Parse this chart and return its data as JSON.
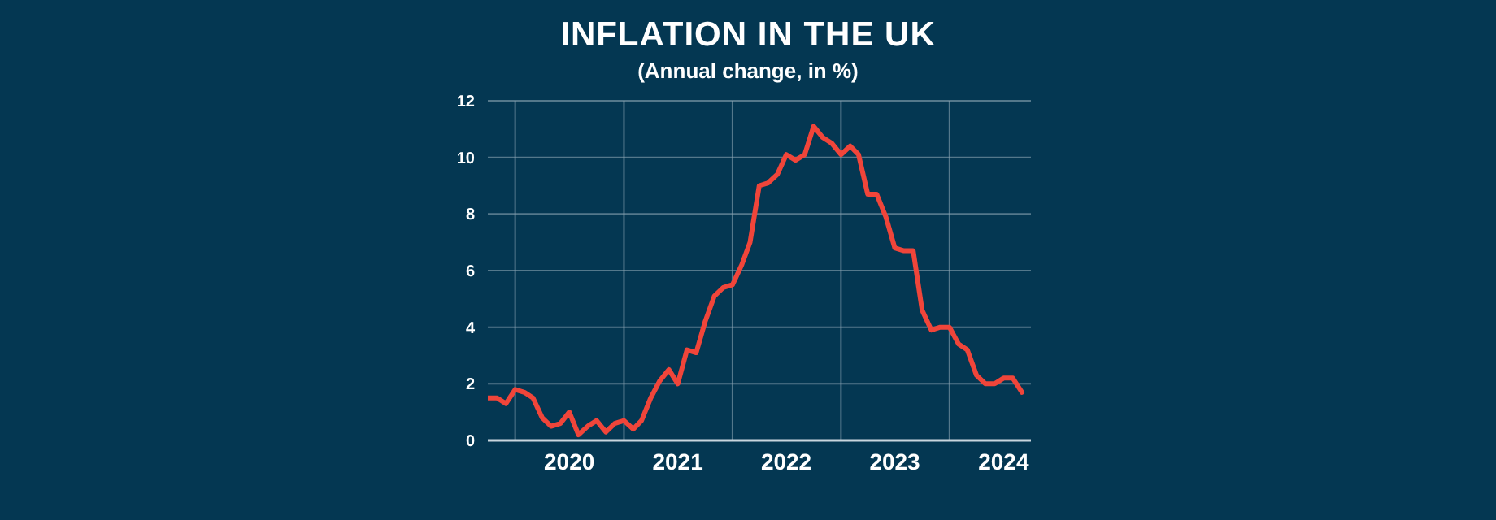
{
  "chart_data": {
    "type": "line",
    "title": "INFLATION IN THE UK",
    "subtitle": "(Annual change, in %)",
    "x": [
      "2019-10",
      "2019-11",
      "2019-12",
      "2020-01",
      "2020-02",
      "2020-03",
      "2020-04",
      "2020-05",
      "2020-06",
      "2020-07",
      "2020-08",
      "2020-09",
      "2020-10",
      "2020-11",
      "2020-12",
      "2021-01",
      "2021-02",
      "2021-03",
      "2021-04",
      "2021-05",
      "2021-06",
      "2021-07",
      "2021-08",
      "2021-09",
      "2021-10",
      "2021-11",
      "2021-12",
      "2022-01",
      "2022-02",
      "2022-03",
      "2022-04",
      "2022-05",
      "2022-06",
      "2022-07",
      "2022-08",
      "2022-09",
      "2022-10",
      "2022-11",
      "2022-12",
      "2023-01",
      "2023-02",
      "2023-03",
      "2023-04",
      "2023-05",
      "2023-06",
      "2023-07",
      "2023-08",
      "2023-09",
      "2023-10",
      "2023-11",
      "2023-12",
      "2024-01",
      "2024-02",
      "2024-03",
      "2024-04",
      "2024-05",
      "2024-06",
      "2024-07",
      "2024-08",
      "2024-09"
    ],
    "series": [
      {
        "color": "#f0453a",
        "values": [
          1.5,
          1.5,
          1.3,
          1.8,
          1.7,
          1.5,
          0.8,
          0.5,
          0.6,
          1.0,
          0.2,
          0.5,
          0.7,
          0.3,
          0.6,
          0.7,
          0.4,
          0.7,
          1.5,
          2.1,
          2.5,
          2.0,
          3.2,
          3.1,
          4.2,
          5.1,
          5.4,
          5.5,
          6.2,
          7.0,
          9.0,
          9.1,
          9.4,
          10.1,
          9.9,
          10.1,
          11.1,
          10.7,
          10.5,
          10.1,
          10.4,
          10.1,
          8.7,
          8.7,
          7.9,
          6.8,
          6.7,
          6.7,
          4.6,
          3.9,
          4.0,
          4.0,
          3.4,
          3.2,
          2.3,
          2.0,
          2.0,
          2.2,
          2.2,
          1.7
        ]
      }
    ],
    "xlim": [
      "2019-10",
      "2024-10"
    ],
    "xticks": [
      {
        "value": "2020-01",
        "label": null
      },
      {
        "value": "2020-07",
        "label": "2020"
      },
      {
        "value": "2021-01",
        "label": null
      },
      {
        "value": "2021-07",
        "label": "2021"
      },
      {
        "value": "2022-01",
        "label": null
      },
      {
        "value": "2022-07",
        "label": "2022"
      },
      {
        "value": "2023-01",
        "label": null
      },
      {
        "value": "2023-07",
        "label": "2023"
      },
      {
        "value": "2024-01",
        "label": null
      },
      {
        "value": "2024-07",
        "label": "2024"
      }
    ],
    "ylim": [
      0,
      12
    ],
    "yticks": [
      0,
      2,
      4,
      6,
      8,
      10,
      12
    ],
    "grid": true,
    "marker": "none",
    "line_style": "solid"
  }
}
